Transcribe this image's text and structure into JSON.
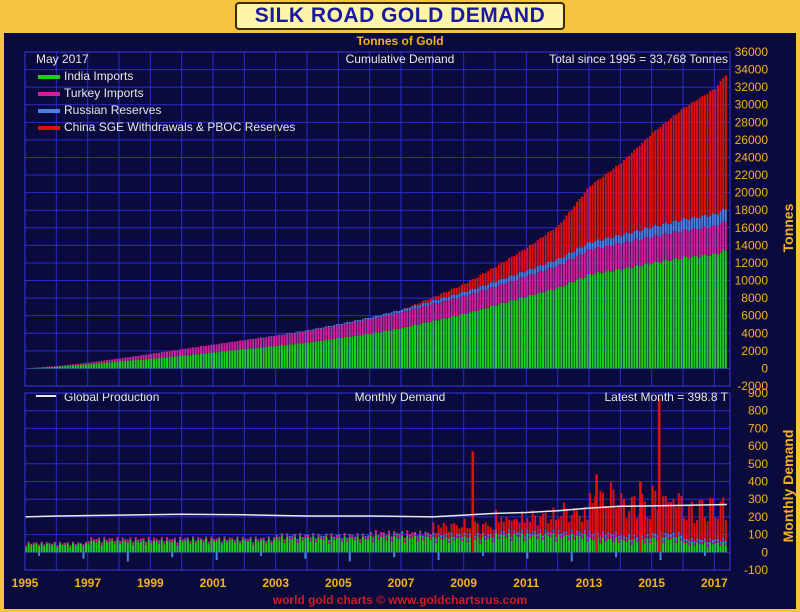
{
  "header": {
    "title": "SILK ROAD GOLD DEMAND",
    "subtitle": "Tonnes of Gold"
  },
  "footer": {
    "text": "world gold charts © www.goldchartsrus.com"
  },
  "colors": {
    "india": "#22cc22",
    "turkey": "#cc2299",
    "russia": "#4a80e0",
    "china": "#dd1111",
    "production": "#e8e8e8",
    "grid": "#2a2ad0",
    "background": "#0a0a3c",
    "accent": "#f5b21a"
  },
  "chart_data": [
    {
      "type": "area",
      "title": "Cumulative Demand",
      "date_label": "May 2017",
      "total_label": "Total since 1995 = 33,768 Tonnes",
      "ylabel": "Tonnes",
      "ylim": [
        -2000,
        36000
      ],
      "yticks": [
        -2000,
        0,
        2000,
        4000,
        6000,
        8000,
        10000,
        12000,
        14000,
        16000,
        18000,
        20000,
        22000,
        24000,
        26000,
        28000,
        30000,
        32000,
        34000,
        36000
      ],
      "xlim": [
        1995,
        2017.5
      ],
      "x": [
        1995,
        1996,
        1997,
        1998,
        1999,
        2000,
        2001,
        2002,
        2003,
        2004,
        2005,
        2006,
        2007,
        2008,
        2009,
        2010,
        2011,
        2012,
        2013,
        2014,
        2015,
        2016,
        2017,
        2017.4
      ],
      "legend_position": "top-left",
      "series": [
        {
          "name": "India Imports",
          "color": "#22cc22",
          "values": [
            0,
            220,
            480,
            800,
            1100,
            1450,
            1820,
            2220,
            2550,
            2950,
            3450,
            3950,
            4600,
            5400,
            6200,
            7200,
            8200,
            9200,
            10700,
            11300,
            12000,
            12600,
            13000,
            13500
          ]
        },
        {
          "name": "Turkey Imports",
          "color": "#cc2299",
          "values": [
            0,
            60,
            180,
            350,
            560,
            760,
            900,
            1020,
            1150,
            1300,
            1450,
            1650,
            1800,
            1950,
            2050,
            2150,
            2300,
            2500,
            2800,
            2950,
            3000,
            3100,
            3200,
            3300
          ]
        },
        {
          "name": "Russian Reserves",
          "color": "#4a80e0",
          "values": [
            0,
            0,
            0,
            0,
            0,
            0,
            0,
            0,
            50,
            100,
            150,
            200,
            280,
            350,
            450,
            550,
            650,
            750,
            850,
            950,
            1100,
            1250,
            1350,
            1450
          ]
        },
        {
          "name": "China SGE Withdrawals & PBOC Reserves",
          "color": "#dd1111",
          "values": [
            0,
            0,
            0,
            0,
            0,
            0,
            0,
            0,
            0,
            0,
            0,
            0,
            0,
            400,
            900,
            1700,
            2600,
            3800,
            6400,
            8200,
            10700,
            12700,
            14300,
            15500
          ]
        }
      ]
    },
    {
      "type": "bar",
      "title": "Monthly Demand",
      "latest_label": "Latest Month = 398.8 T",
      "ylabel": "Monthly Demand",
      "ylim": [
        -100,
        900
      ],
      "yticks": [
        -100,
        0,
        100,
        200,
        300,
        400,
        500,
        600,
        700,
        800,
        900
      ],
      "xlim": [
        1995,
        2017.5
      ],
      "xticks": [
        1995,
        1997,
        1999,
        2001,
        2003,
        2005,
        2007,
        2009,
        2011,
        2013,
        2015,
        2017
      ],
      "legend_position": "top-left",
      "production_line": {
        "name": "Global Production",
        "color": "#e8e8e8",
        "x": [
          1995,
          1996,
          1998,
          2000,
          2002,
          2004,
          2006,
          2008,
          2009,
          2010,
          2011,
          2012,
          2013,
          2014,
          2016,
          2017.4
        ],
        "values": [
          200,
          205,
          210,
          215,
          212,
          205,
          205,
          200,
          210,
          220,
          225,
          235,
          250,
          260,
          265,
          270
        ]
      },
      "segments": [
        {
          "from": 1995,
          "to": 1997,
          "india": 40,
          "turkey": 8,
          "russia": 0,
          "china": 0
        },
        {
          "from": 1997,
          "to": 2000,
          "india": 55,
          "turkey": 15,
          "russia": 0,
          "china": 0
        },
        {
          "from": 2000,
          "to": 2003,
          "india": 60,
          "turkey": 10,
          "russia": 2,
          "china": 0
        },
        {
          "from": 2003,
          "to": 2006,
          "india": 70,
          "turkey": 12,
          "russia": 5,
          "china": 0
        },
        {
          "from": 2006,
          "to": 2008,
          "india": 75,
          "turkey": 15,
          "russia": 7,
          "china": 5
        },
        {
          "from": 2008,
          "to": 2010,
          "india": 70,
          "turkey": 10,
          "russia": 10,
          "china": 50
        },
        {
          "from": 2010,
          "to": 2012,
          "india": 85,
          "turkey": 12,
          "russia": 8,
          "china": 80
        },
        {
          "from": 2012,
          "to": 2013,
          "india": 80,
          "turkey": 15,
          "russia": 8,
          "china": 110
        },
        {
          "from": 2013,
          "to": 2014,
          "india": 65,
          "turkey": 25,
          "russia": 8,
          "china": 210
        },
        {
          "from": 2014,
          "to": 2015,
          "india": 60,
          "turkey": 12,
          "russia": 10,
          "china": 160
        },
        {
          "from": 2015,
          "to": 2016,
          "india": 70,
          "turkey": 10,
          "russia": 15,
          "china": 200
        },
        {
          "from": 2016,
          "to": 2017.4,
          "india": 45,
          "turkey": 10,
          "russia": 12,
          "china": 160
        }
      ],
      "spikes": [
        {
          "x": 2009.25,
          "value": 570
        },
        {
          "x": 2015.2,
          "value": 870
        },
        {
          "x": 2013.2,
          "value": 440
        },
        {
          "x": 2014.6,
          "value": 400
        }
      ]
    }
  ]
}
